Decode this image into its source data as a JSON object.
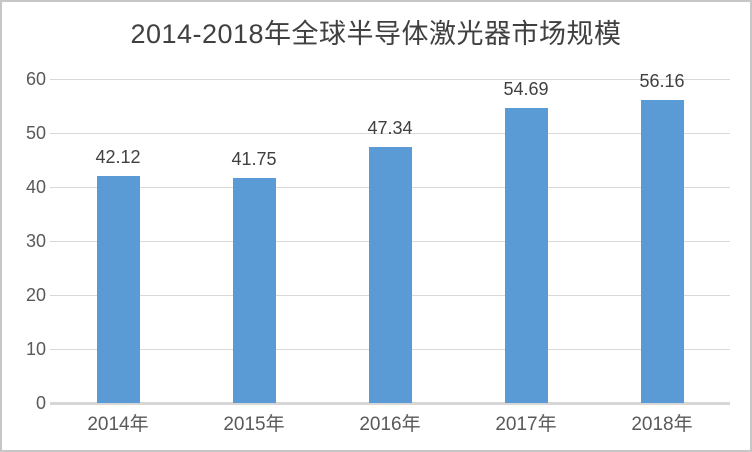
{
  "chart_data": {
    "type": "bar",
    "title": "2014-2018年全球半导体激光器市场规模",
    "categories": [
      "2014年",
      "2015年",
      "2016年",
      "2017年",
      "2018年"
    ],
    "values": [
      42.12,
      41.75,
      47.34,
      54.69,
      56.16
    ],
    "data_labels": [
      "42.12",
      "41.75",
      "47.34",
      "54.69",
      "56.16"
    ],
    "yticks": [
      0,
      10,
      20,
      30,
      40,
      50,
      60
    ],
    "ylim": [
      0,
      60
    ],
    "xlabel": "",
    "ylabel": "",
    "grid": true,
    "legend_position": "none",
    "bar_color": "#5B9BD5",
    "gridline_color": "#D9D9D9",
    "axis_line_color": "#D6D6D6",
    "title_color": "#404040",
    "data_label_color": "#404040",
    "tick_label_color": "#595959",
    "frame_color": "#C6C6C6",
    "background_color": "#FFFFFF"
  }
}
